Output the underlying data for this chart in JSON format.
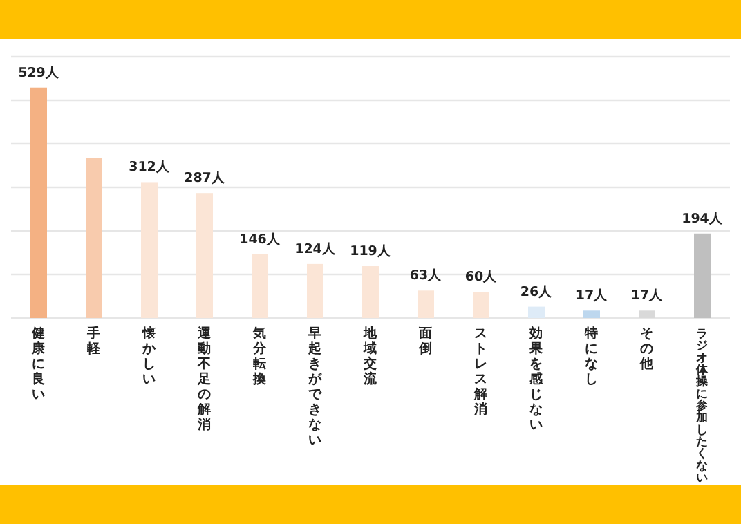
{
  "chart_data": {
    "type": "bar",
    "categories": [
      "健康に良い",
      "手軽",
      "懐かしい",
      "運動不足の解消",
      "気分転換",
      "早起きができない",
      "地域交流",
      "面倒",
      "ストレス解消",
      "効果を感じない",
      "特になし",
      "その他",
      "ラジオ体操に参加したくない"
    ],
    "values": [
      529,
      367,
      312,
      287,
      146,
      124,
      119,
      63,
      60,
      26,
      17,
      17,
      194
    ],
    "colors": [
      "#f4b183",
      "#f8cbad",
      "#fbe5d6",
      "#fbe5d6",
      "#fbe5d6",
      "#fbe5d6",
      "#fbe5d6",
      "#fbe5d6",
      "#fbe5d6",
      "#deebf7",
      "#bdd7ee",
      "#d9d9d9",
      "#bfbfbf"
    ],
    "value_labels": [
      "529人",
      null,
      "312人",
      "287人",
      "146人",
      "124人",
      "119人",
      "63人",
      "60人",
      "26人",
      "17人",
      "17人",
      "194人"
    ],
    "ylim": [
      0,
      600
    ],
    "yticks": [
      {
        "value": 0,
        "label": null
      },
      {
        "value": 100,
        "label": null
      },
      {
        "value": 200,
        "label": null
      },
      {
        "value": 300,
        "label": null
      },
      {
        "value": 400,
        "label": null
      },
      {
        "value": 500,
        "label": null
      },
      {
        "value": 600,
        "label": null
      }
    ],
    "grid": "y"
  }
}
